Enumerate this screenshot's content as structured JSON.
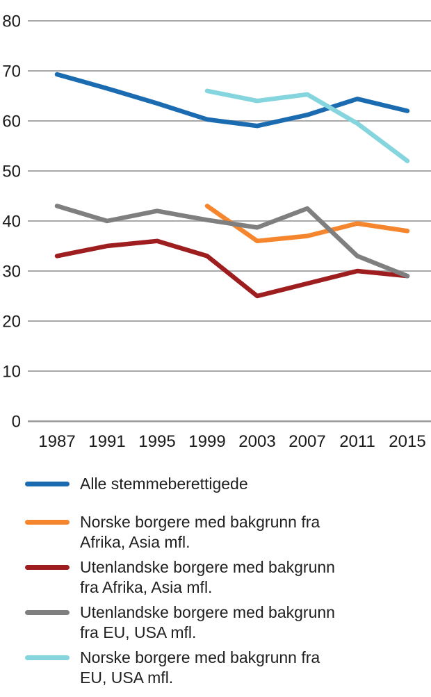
{
  "chart_data": {
    "type": "line",
    "title": "",
    "xlabel": "",
    "ylabel": "",
    "categories": [
      "1987",
      "1991",
      "1995",
      "1999",
      "2003",
      "2007",
      "2011",
      "2015"
    ],
    "series": [
      {
        "name": "Alle stemmeberettigede",
        "color": "#1a6bb0",
        "values": [
          69.3,
          66.5,
          63.5,
          60.3,
          59,
          61.2,
          64.4,
          62
        ]
      },
      {
        "name": "Norske borgere med bakgrunn fra Afrika, Asia mfl.",
        "color": "#f6862d",
        "values": [
          null,
          null,
          null,
          43,
          36,
          37,
          39.5,
          38
        ]
      },
      {
        "name": "Utenlandske borgere med bakgrunn fra Afrika, Asia mfl.",
        "color": "#9e1d1f",
        "values": [
          33,
          35,
          36,
          33,
          25,
          27.5,
          30,
          29
        ]
      },
      {
        "name": "Utenlandske borgere med bakgrunn fra EU, USA mfl.",
        "color": "#7f7f7f",
        "values": [
          43,
          40,
          42,
          40.2,
          38.7,
          42.5,
          33,
          29
        ]
      },
      {
        "name": "Norske borgere med bakgrunn fra EU, USA mfl.",
        "color": "#84d5de",
        "values": [
          null,
          null,
          null,
          66,
          64,
          65.3,
          59.5,
          52
        ]
      }
    ],
    "ylim": [
      0,
      80
    ],
    "y_ticks": [
      0,
      10,
      20,
      30,
      40,
      50,
      60,
      70,
      80
    ],
    "grid": true,
    "legend_position": "bottom"
  },
  "legend": {
    "items": [
      {
        "lines": [
          "Alle stemmeberettigede"
        ],
        "color": "#1a6bb0"
      },
      {
        "lines": [
          "Norske borgere med bakgrunn fra",
          "Afrika, Asia mfl."
        ],
        "color": "#f6862d"
      },
      {
        "lines": [
          "Utenlandske borgere med bakgrunn",
          "fra Afrika, Asia mfl."
        ],
        "color": "#9e1d1f"
      },
      {
        "lines": [
          "Utenlandske borgere med bakgrunn",
          "fra EU, USA mfl."
        ],
        "color": "#7f7f7f"
      },
      {
        "lines": [
          "Norske borgere med bakgrunn fra",
          "EU, USA mfl."
        ],
        "color": "#84d5de"
      }
    ]
  },
  "colors": {
    "background": "#ffffff",
    "gridline": "#a8a8a8",
    "zero_line": "#9b9b9b",
    "axis_text": "#1a1a1a"
  }
}
